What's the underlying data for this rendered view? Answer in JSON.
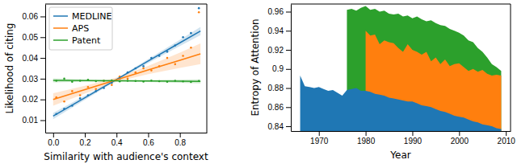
{
  "chart_data": [
    {
      "type": "line",
      "x_label": "Similarity with audience's context",
      "y_label": "Likelihood of citing",
      "xlim": [
        -0.05,
        0.97
      ],
      "ylim": [
        0.004,
        0.066
      ],
      "xticks": [
        {
          "value": 0,
          "label": "0.0"
        },
        {
          "value": 0.2,
          "label": "0.2"
        },
        {
          "value": 0.4,
          "label": "0.4"
        },
        {
          "value": 0.6,
          "label": "0.6"
        },
        {
          "value": 0.8,
          "label": "0.8"
        }
      ],
      "yticks": [
        0.01,
        0.02,
        0.03,
        0.04,
        0.05,
        0.06
      ],
      "legend": "upper left",
      "grid": false,
      "series": [
        {
          "name": "MEDLINE",
          "type": "line",
          "color": "#1f77b4",
          "x": [
            0,
            0.2,
            0.4,
            0.6,
            0.8,
            0.93
          ],
          "values": [
            0.012,
            0.0208,
            0.0296,
            0.0385,
            0.0473,
            0.053
          ],
          "lower": [
            0.0105,
            0.0198,
            0.0291,
            0.0375,
            0.0458,
            0.051
          ],
          "upper": [
            0.0135,
            0.0218,
            0.0301,
            0.0395,
            0.0488,
            0.055
          ]
        },
        {
          "name": "APS",
          "type": "line",
          "color": "#ff7f0e",
          "x": [
            0,
            0.2,
            0.4,
            0.6,
            0.8,
            0.93
          ],
          "values": [
            0.02,
            0.0247,
            0.0295,
            0.0342,
            0.0389,
            0.042
          ],
          "lower": [
            0.017,
            0.0228,
            0.0285,
            0.0322,
            0.0352,
            0.037
          ],
          "upper": [
            0.023,
            0.0266,
            0.0305,
            0.0362,
            0.0426,
            0.047
          ]
        },
        {
          "name": "Patent",
          "type": "line",
          "color": "#2ca02c",
          "x": [
            0,
            0.2,
            0.4,
            0.6,
            0.8,
            0.93
          ],
          "values": [
            0.0292,
            0.0291,
            0.029,
            0.0289,
            0.0288,
            0.0287
          ],
          "lower": [
            0.0282,
            0.0285,
            0.0286,
            0.0284,
            0.028,
            0.0277
          ],
          "upper": [
            0.0302,
            0.0297,
            0.0294,
            0.0294,
            0.0296,
            0.0297
          ]
        },
        {
          "type": "scatter",
          "color": "#1f77b4",
          "x": [
            0.02,
            0.07,
            0.12,
            0.17,
            0.22,
            0.27,
            0.32,
            0.37,
            0.42,
            0.47,
            0.52,
            0.57,
            0.62,
            0.67,
            0.72,
            0.77,
            0.82,
            0.87,
            0.92
          ],
          "values": [
            0.013,
            0.0155,
            0.017,
            0.0205,
            0.022,
            0.024,
            0.0255,
            0.028,
            0.03,
            0.033,
            0.035,
            0.036,
            0.04,
            0.041,
            0.043,
            0.046,
            0.05,
            0.052,
            0.064
          ]
        },
        {
          "type": "scatter",
          "color": "#ff7f0e",
          "x": [
            0.02,
            0.07,
            0.12,
            0.17,
            0.22,
            0.27,
            0.32,
            0.37,
            0.42,
            0.47,
            0.52,
            0.57,
            0.62,
            0.67,
            0.72,
            0.77,
            0.82,
            0.87,
            0.92
          ],
          "values": [
            0.021,
            0.019,
            0.024,
            0.022,
            0.026,
            0.025,
            0.029,
            0.027,
            0.031,
            0.03,
            0.033,
            0.035,
            0.034,
            0.036,
            0.04,
            0.037,
            0.041,
            0.045,
            0.062
          ]
        },
        {
          "type": "scatter",
          "color": "#2ca02c",
          "x": [
            0.02,
            0.07,
            0.12,
            0.17,
            0.22,
            0.27,
            0.32,
            0.37,
            0.42,
            0.47,
            0.52,
            0.57,
            0.62,
            0.67,
            0.72,
            0.77,
            0.82,
            0.87,
            0.92
          ],
          "values": [
            0.029,
            0.03,
            0.0285,
            0.029,
            0.0295,
            0.0288,
            0.029,
            0.0292,
            0.0287,
            0.029,
            0.0289,
            0.0286,
            0.0291,
            0.0288,
            0.0285,
            0.029,
            0.0287,
            0.0284,
            0.0289
          ]
        }
      ]
    },
    {
      "type": "area",
      "x_label": "Year",
      "y_label": "Entropy of Attention",
      "xlim": [
        1964,
        2011
      ],
      "ylim": [
        0.835,
        0.968
      ],
      "xticks": [
        1970,
        1980,
        1990,
        2000,
        2010
      ],
      "yticks": [
        0.84,
        0.86,
        0.88,
        0.9,
        0.92,
        0.94,
        0.96
      ],
      "stacked": false,
      "grid": false,
      "x": [
        1966,
        1967,
        1968,
        1969,
        1970,
        1971,
        1972,
        1973,
        1974,
        1975,
        1976,
        1977,
        1978,
        1979,
        1980,
        1981,
        1982,
        1983,
        1984,
        1985,
        1986,
        1987,
        1988,
        1989,
        1990,
        1991,
        1992,
        1993,
        1994,
        1995,
        1996,
        1997,
        1998,
        1999,
        2000,
        2001,
        2002,
        2003,
        2004,
        2005,
        2006,
        2007,
        2008,
        2009
      ],
      "series": [
        {
          "color": "#2ca02c",
          "values": [
            null,
            null,
            null,
            null,
            null,
            null,
            null,
            null,
            null,
            null,
            0.962,
            0.963,
            0.961,
            0.964,
            0.966,
            0.962,
            0.963,
            0.96,
            0.961,
            0.958,
            0.957,
            0.958,
            0.955,
            0.956,
            0.953,
            0.955,
            0.952,
            0.95,
            0.951,
            0.948,
            0.946,
            0.945,
            0.942,
            0.94,
            0.938,
            0.935,
            0.93,
            0.928,
            0.922,
            0.918,
            0.912,
            0.905,
            0.902,
            0.898
          ]
        },
        {
          "color": "#ff7f0e",
          "values": [
            null,
            null,
            null,
            null,
            null,
            null,
            null,
            null,
            null,
            null,
            null,
            null,
            null,
            null,
            0.94,
            0.935,
            0.936,
            0.926,
            0.93,
            0.928,
            0.927,
            0.922,
            0.918,
            0.926,
            0.92,
            0.918,
            0.915,
            0.918,
            0.908,
            0.912,
            0.905,
            0.91,
            0.903,
            0.905,
            0.906,
            0.902,
            0.898,
            0.9,
            0.897,
            0.899,
            0.895,
            0.893,
            0.894,
            0.893
          ]
        },
        {
          "color": "#1f77b4",
          "values": [
            0.893,
            0.882,
            0.881,
            0.88,
            0.881,
            0.879,
            0.877,
            0.878,
            0.875,
            0.872,
            0.878,
            0.879,
            0.88,
            0.877,
            0.877,
            0.876,
            0.874,
            0.873,
            0.872,
            0.87,
            0.869,
            0.868,
            0.867,
            0.866,
            0.866,
            0.864,
            0.862,
            0.861,
            0.86,
            0.858,
            0.856,
            0.855,
            0.853,
            0.851,
            0.85,
            0.849,
            0.847,
            0.845,
            0.844,
            0.842,
            0.841,
            0.84,
            0.838,
            0.837
          ]
        }
      ]
    }
  ]
}
